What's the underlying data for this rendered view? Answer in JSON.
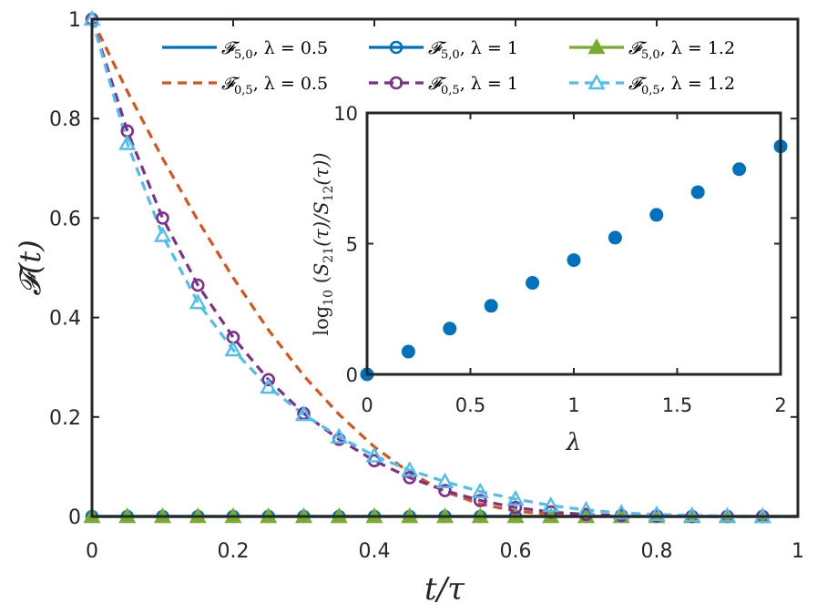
{
  "chart_data": [
    {
      "type": "line",
      "xlabel": "t/τ",
      "ylabel": "𝓕(t)",
      "xlim": [
        0,
        1
      ],
      "ylim": [
        0,
        1
      ],
      "xticks": [
        0,
        0.2,
        0.4,
        0.6,
        0.8,
        1
      ],
      "xtick_labels": [
        "0",
        "0.2",
        "0.4",
        "0.6",
        "0.8",
        "1"
      ],
      "yticks": [
        0,
        0.2,
        0.4,
        0.6,
        0.8,
        1
      ],
      "ytick_labels": [
        "0",
        "0.2",
        "0.4",
        "0.6",
        "0.8",
        "1"
      ],
      "legend_position": "top",
      "marker_x": [
        0,
        0.05,
        0.1,
        0.15,
        0.2,
        0.25,
        0.3,
        0.35,
        0.4,
        0.45,
        0.5,
        0.55,
        0.6,
        0.65,
        0.7,
        0.75,
        0.8,
        0.85,
        0.9,
        0.95
      ],
      "series": [
        {
          "name": "𝓕5,0, λ = 0.5",
          "label_main": "𝓕",
          "label_sub": "5,0",
          "label_rest": ", λ = 0.5",
          "color": "#0072BD",
          "dash": "solid",
          "marker": "none",
          "x": [
            0,
            1
          ],
          "values": [
            0,
            0
          ]
        },
        {
          "name": "𝓕5,0, λ = 1",
          "label_main": "𝓕",
          "label_sub": "5,0",
          "label_rest": ", λ = 1",
          "color": "#0072BD",
          "dash": "solid",
          "marker": "circle",
          "x": [
            0,
            1
          ],
          "values": [
            0,
            0
          ],
          "marker_values": [
            0,
            0,
            0,
            0,
            0,
            0,
            0,
            0,
            0,
            0,
            0,
            0,
            0,
            0,
            0,
            0,
            0,
            0,
            0,
            0
          ]
        },
        {
          "name": "𝓕5,0, λ = 1.2",
          "label_main": "𝓕",
          "label_sub": "5,0",
          "label_rest": ", λ = 1.2",
          "color": "#77AC30",
          "dash": "solid",
          "marker": "triangle",
          "x": [
            0,
            1
          ],
          "values": [
            0,
            0
          ],
          "marker_values": [
            0,
            0,
            0,
            0,
            0,
            0,
            0,
            0,
            0,
            0,
            0,
            0,
            0,
            0,
            0,
            0,
            0,
            0,
            0,
            0
          ]
        },
        {
          "name": "𝓕0,5, λ = 0.5",
          "label_main": "𝓕",
          "label_sub": "0,5",
          "label_rest": ", λ = 0.5",
          "color": "#D95319",
          "dash": "dashed",
          "marker": "none",
          "x": [
            0,
            0.05,
            0.1,
            0.15,
            0.2,
            0.25,
            0.3,
            0.35,
            0.4,
            0.45,
            0.5,
            0.55,
            0.6,
            0.65,
            0.7,
            0.75,
            0.8,
            1
          ],
          "values": [
            1.0,
            0.855,
            0.72,
            0.595,
            0.48,
            0.375,
            0.283,
            0.205,
            0.14,
            0.088,
            0.05,
            0.025,
            0.011,
            0.004,
            0.001,
            0,
            0,
            0
          ]
        },
        {
          "name": "𝓕0,5, λ = 1",
          "label_main": "𝓕",
          "label_sub": "0,5",
          "label_rest": ", λ = 1",
          "color": "#7E2F8E",
          "dash": "dashed",
          "marker": "circle",
          "x": [
            0,
            0.05,
            0.1,
            0.15,
            0.2,
            0.25,
            0.3,
            0.35,
            0.4,
            0.45,
            0.5,
            0.55,
            0.6,
            0.65,
            0.7,
            0.75,
            0.8,
            0.85,
            0.9,
            0.95,
            1
          ],
          "values": [
            1.0,
            0.775,
            0.6,
            0.465,
            0.36,
            0.275,
            0.207,
            0.155,
            0.112,
            0.078,
            0.052,
            0.032,
            0.018,
            0.009,
            0.004,
            0.002,
            0.001,
            0,
            0,
            0,
            0
          ],
          "marker_values": [
            1.0,
            0.775,
            0.6,
            0.465,
            0.36,
            0.275,
            0.207,
            0.155,
            0.112,
            0.078,
            0.052,
            0.032,
            0.018,
            0.009,
            0.004,
            0.002,
            0.001,
            0,
            0,
            0
          ]
        },
        {
          "name": "𝓕0,5, λ = 1.2",
          "label_main": "𝓕",
          "label_sub": "0,5",
          "label_rest": ", λ = 1.2",
          "color": "#4DBEEE",
          "dash": "dashed",
          "marker": "triangle",
          "x": [
            0,
            0.05,
            0.1,
            0.15,
            0.2,
            0.25,
            0.3,
            0.35,
            0.4,
            0.45,
            0.5,
            0.55,
            0.6,
            0.65,
            0.7,
            0.75,
            0.8,
            0.85,
            0.9,
            0.95,
            1
          ],
          "values": [
            1.0,
            0.75,
            0.565,
            0.43,
            0.335,
            0.26,
            0.205,
            0.16,
            0.122,
            0.093,
            0.07,
            0.05,
            0.035,
            0.022,
            0.013,
            0.007,
            0.004,
            0.002,
            0.001,
            0,
            0
          ],
          "marker_values": [
            1.0,
            0.75,
            0.565,
            0.43,
            0.335,
            0.26,
            0.205,
            0.16,
            0.122,
            0.093,
            0.07,
            0.05,
            0.035,
            0.022,
            0.013,
            0.007,
            0.004,
            0.002,
            0.001,
            0
          ]
        }
      ]
    },
    {
      "type": "scatter",
      "xlabel": "λ",
      "ylabel": "log10 (S21(τ)/S12(τ))",
      "xlim": [
        0,
        2
      ],
      "ylim": [
        0,
        10
      ],
      "xticks": [
        0,
        0.5,
        1,
        1.5,
        2
      ],
      "xtick_labels": [
        "0",
        "0.5",
        "1",
        "1.5",
        "2"
      ],
      "yticks": [
        0,
        5,
        10
      ],
      "ytick_labels": [
        "0",
        "5",
        "10"
      ],
      "color": "#0072BD",
      "x": [
        0,
        0.2,
        0.4,
        0.6,
        0.8,
        1.0,
        1.2,
        1.4,
        1.6,
        1.8,
        2.0
      ],
      "y": [
        0,
        0.87,
        1.75,
        2.62,
        3.5,
        4.37,
        5.23,
        6.1,
        6.97,
        7.85,
        8.72
      ]
    }
  ]
}
